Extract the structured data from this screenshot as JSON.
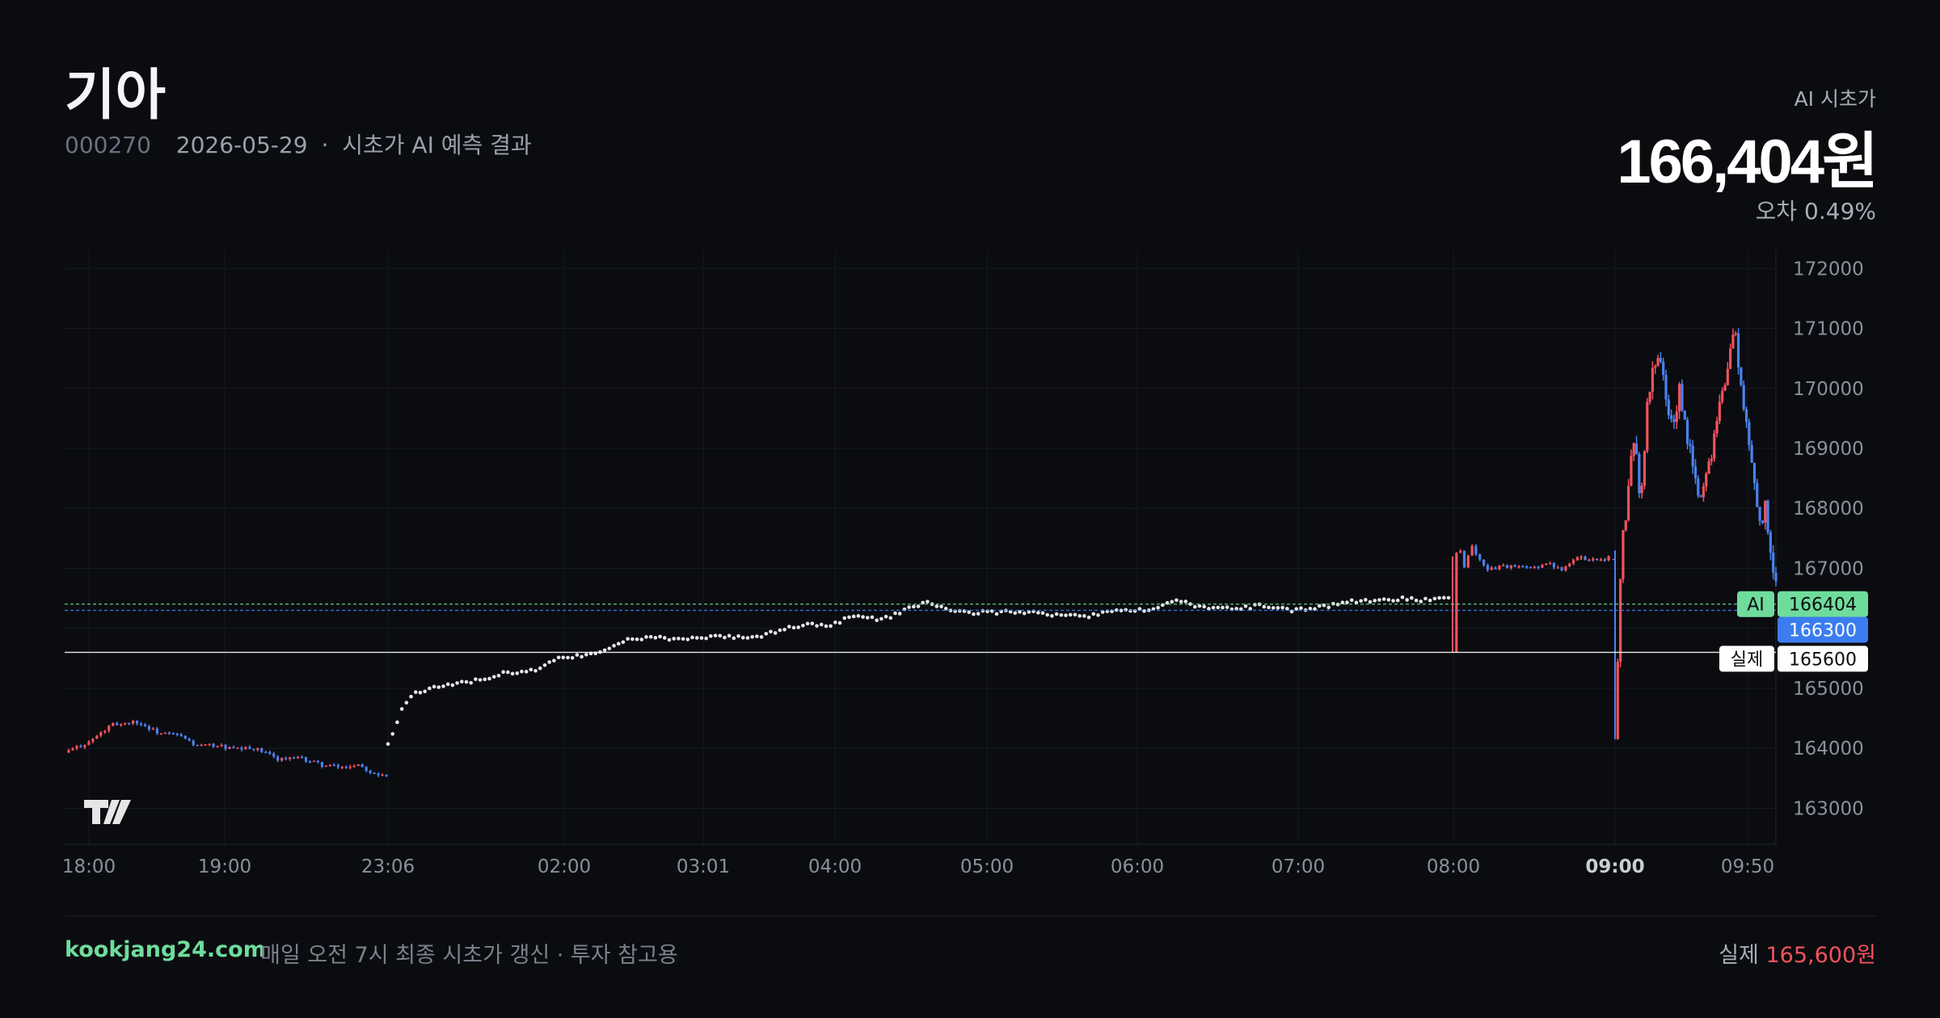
{
  "header": {
    "stock_name": "기아",
    "code": "000270",
    "date": "2026-05-29",
    "subtitle": "시초가 AI 예측 결과",
    "ai_label": "AI 시초가",
    "ai_value": "166,404원",
    "error_text": "오차 0.49%"
  },
  "footer": {
    "site": "kookjang24.com",
    "tagline": "매일 오전 7시 최종 시초가 갱신 · 투자 참고용",
    "actual_label": "실제",
    "actual_value": "165,600원"
  },
  "colors": {
    "up": "#f2525e",
    "down": "#4a82f0",
    "ai": "#6fdc9c",
    "prev": "#3b7cf0",
    "actual": "#ffffff",
    "grid": "#161922"
  },
  "chart_data": {
    "type": "candlestick",
    "x_tick_labels": [
      "18:00",
      "19:00",
      "23:06",
      "02:00",
      "03:01",
      "04:00",
      "05:00",
      "06:00",
      "07:00",
      "08:00",
      "09:00",
      "09:50"
    ],
    "x_tick_bold": "09:00",
    "y_ticks": [
      163000,
      164000,
      165000,
      166000,
      167000,
      168000,
      169000,
      170000,
      171000,
      172000
    ],
    "ylim": [
      162400,
      172300
    ],
    "grid": true,
    "segments": [
      {
        "name": "evening",
        "style": "candles",
        "start": "18:00",
        "end": "23:06",
        "path": [
          [
            0,
            163930
          ],
          [
            10,
            164100
          ],
          [
            20,
            164390
          ],
          [
            30,
            164450
          ],
          [
            40,
            164250
          ],
          [
            48,
            164220
          ],
          [
            56,
            164040
          ],
          [
            64,
            164050
          ],
          [
            72,
            163980
          ],
          [
            80,
            164000
          ],
          [
            90,
            163830
          ],
          [
            100,
            163830
          ],
          [
            110,
            163710
          ],
          [
            118,
            163680
          ],
          [
            124,
            163740
          ],
          [
            130,
            163600
          ],
          [
            136,
            163560
          ]
        ]
      },
      {
        "name": "overnight",
        "style": "dots",
        "start": "23:06",
        "end": "08:00",
        "path": [
          [
            0,
            164050
          ],
          [
            5,
            164700
          ],
          [
            10,
            164940
          ],
          [
            20,
            165050
          ],
          [
            30,
            165130
          ],
          [
            40,
            165250
          ],
          [
            50,
            165300
          ],
          [
            58,
            165500
          ],
          [
            70,
            165560
          ],
          [
            80,
            165780
          ],
          [
            90,
            165850
          ],
          [
            100,
            165800
          ],
          [
            110,
            165850
          ],
          [
            120,
            165850
          ],
          [
            128,
            165870
          ],
          [
            136,
            166000
          ],
          [
            144,
            166060
          ],
          [
            152,
            166060
          ],
          [
            160,
            166200
          ],
          [
            170,
            166150
          ],
          [
            180,
            166350
          ],
          [
            186,
            166440
          ],
          [
            194,
            166260
          ],
          [
            206,
            166270
          ],
          [
            218,
            166270
          ],
          [
            230,
            166230
          ],
          [
            240,
            166200
          ],
          [
            248,
            166300
          ],
          [
            256,
            166310
          ],
          [
            262,
            166300
          ],
          [
            270,
            166460
          ],
          [
            280,
            166350
          ],
          [
            290,
            166320
          ],
          [
            300,
            166380
          ],
          [
            310,
            166290
          ],
          [
            320,
            166350
          ],
          [
            330,
            166440
          ],
          [
            340,
            166460
          ],
          [
            350,
            166500
          ],
          [
            358,
            166460
          ],
          [
            364,
            166510
          ]
        ]
      },
      {
        "name": "pre_market",
        "style": "candles",
        "start": "08:00",
        "end": "09:00",
        "path": [
          [
            0,
            165600
          ],
          [
            2,
            167200
          ],
          [
            4,
            167380
          ],
          [
            8,
            167000
          ],
          [
            12,
            167400
          ],
          [
            18,
            167100
          ],
          [
            24,
            166970
          ],
          [
            30,
            167050
          ],
          [
            40,
            167020
          ],
          [
            50,
            167000
          ],
          [
            60,
            167080
          ],
          [
            70,
            167000
          ],
          [
            80,
            167180
          ],
          [
            92,
            167150
          ],
          [
            100,
            167180
          ]
        ]
      },
      {
        "name": "regular",
        "style": "candles",
        "start": "09:00",
        "end": "09:50",
        "path": [
          [
            0,
            164150
          ],
          [
            2,
            167300
          ],
          [
            4,
            168200
          ],
          [
            6,
            169300
          ],
          [
            8,
            168000
          ],
          [
            10,
            169700
          ],
          [
            12,
            170400
          ],
          [
            14,
            170600
          ],
          [
            16,
            169700
          ],
          [
            18,
            169350
          ],
          [
            20,
            169950
          ],
          [
            22,
            169250
          ],
          [
            24,
            168800
          ],
          [
            26,
            168100
          ],
          [
            28,
            168500
          ],
          [
            30,
            168950
          ],
          [
            32,
            169700
          ],
          [
            34,
            170050
          ],
          [
            36,
            170650
          ],
          [
            37,
            171100
          ],
          [
            38,
            170600
          ],
          [
            40,
            169600
          ],
          [
            42,
            169000
          ],
          [
            44,
            168100
          ],
          [
            46,
            167700
          ],
          [
            47,
            168150
          ],
          [
            48,
            167300
          ],
          [
            49,
            167000
          ],
          [
            50,
            166800
          ]
        ]
      }
    ],
    "markers": [
      {
        "name": "AI",
        "label": "AI",
        "value": 166404
      },
      {
        "name": "previous",
        "label": "",
        "value": 166300
      },
      {
        "name": "actual",
        "label": "실제",
        "value": 165600
      }
    ]
  }
}
